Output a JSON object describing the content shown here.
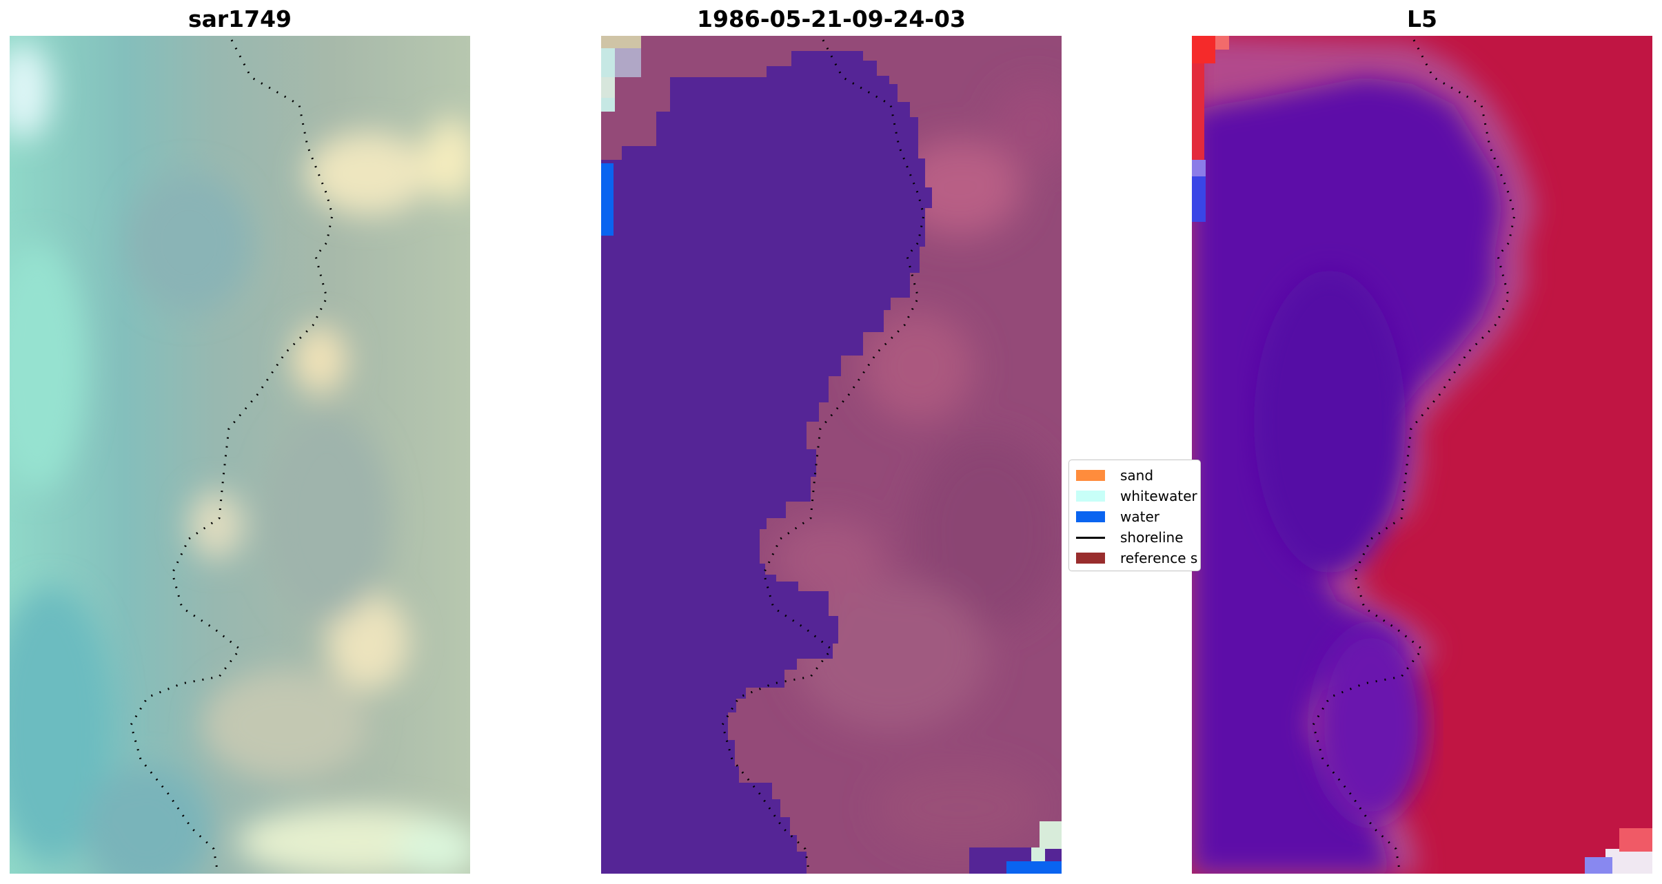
{
  "panels": [
    {
      "title": "sar1749"
    },
    {
      "title": "1986-05-21-09-24-03"
    },
    {
      "title": "L5"
    }
  ],
  "legend": {
    "items": [
      {
        "label": "sand",
        "color": "#ff8c3c",
        "kind": "patch"
      },
      {
        "label": "whitewater",
        "color": "#c8fff8",
        "kind": "patch"
      },
      {
        "label": "water",
        "color": "#0a64f0",
        "kind": "patch"
      },
      {
        "label": "shoreline",
        "color": "#000000",
        "kind": "line"
      },
      {
        "label": "reference s",
        "color": "#992d2d",
        "kind": "patch"
      }
    ]
  },
  "colors": {
    "classified_water": "#552596",
    "classified_land": "#944a78",
    "l5_water": "#5d0ea8",
    "l5_land": "#c01543"
  }
}
